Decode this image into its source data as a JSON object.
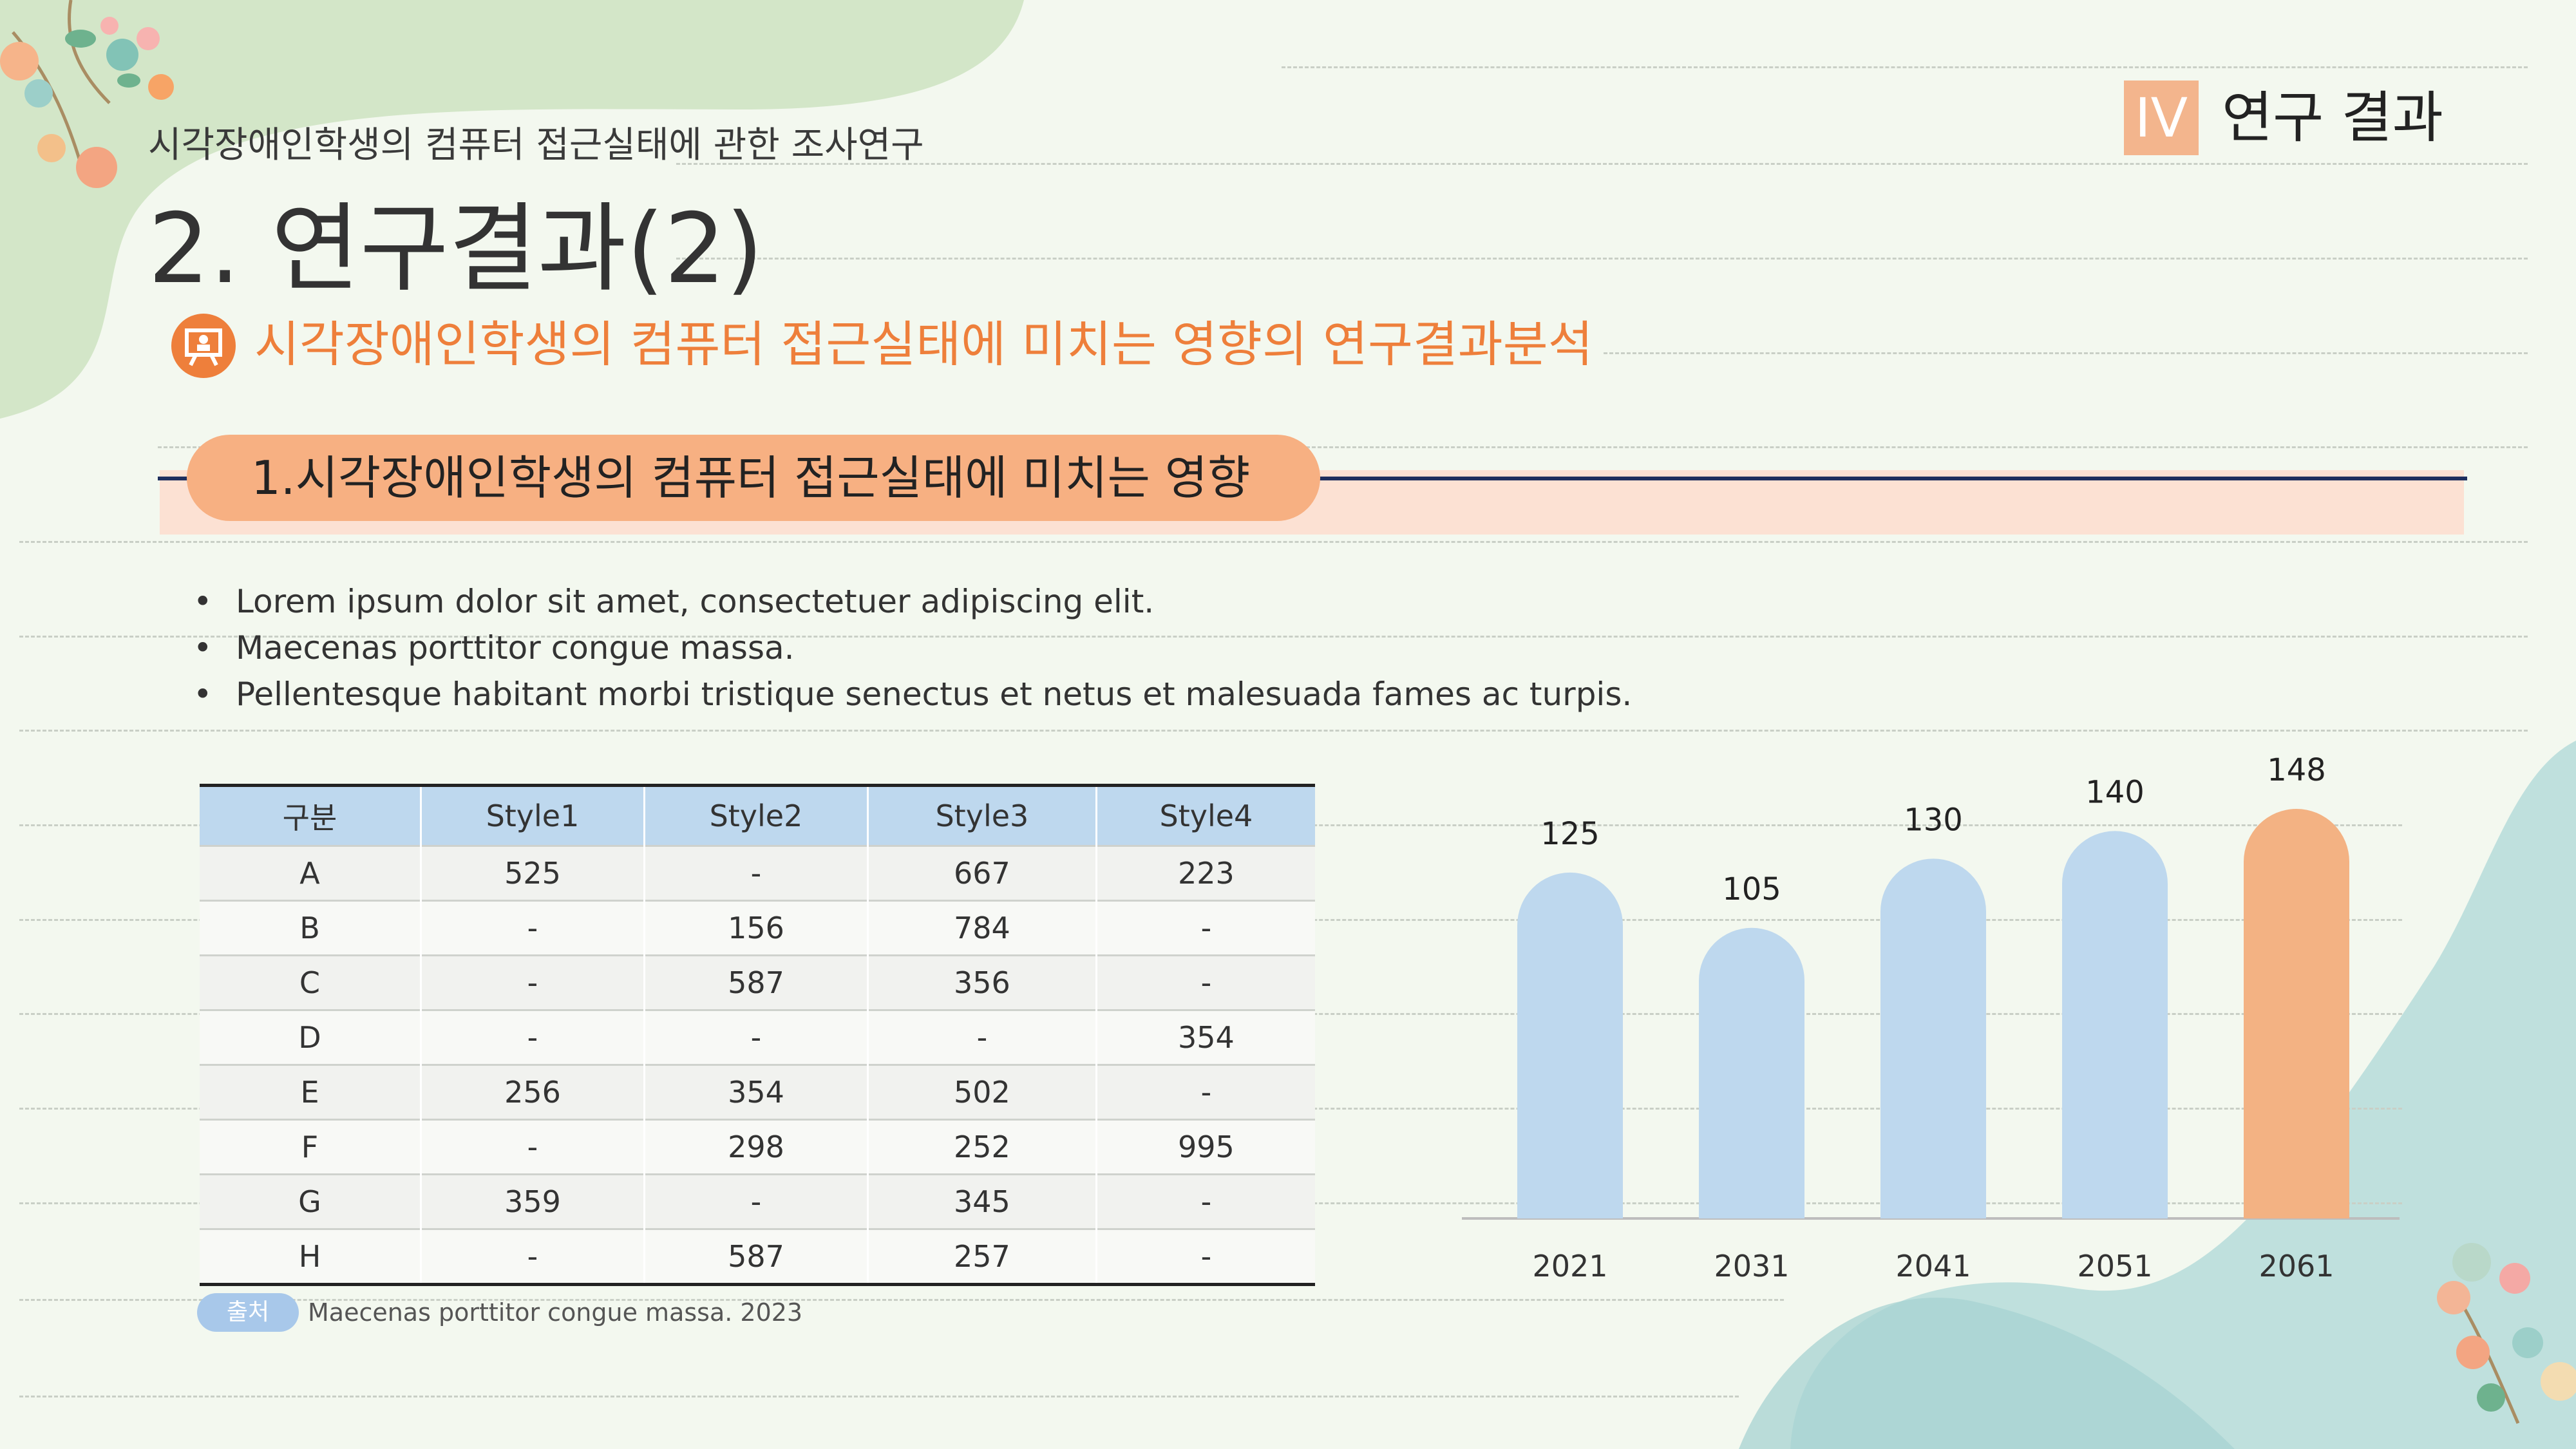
{
  "header": {
    "subtitle": "시각장애인학생의 컴퓨터 접근실태에 관한 조사연구",
    "title": "2. 연구결과(2)",
    "section_numeral": "IV",
    "section_label": "연구 결과"
  },
  "subheading": "시각장애인학생의 컴퓨터 접근실태에 미치는 영향의 연구결과분석",
  "topic_pill": "1.시각장애인학생의 컴퓨터 접근실태에 미치는 영향",
  "bullets": [
    "Lorem ipsum dolor sit amet, consectetuer adipiscing elit.",
    "Maecenas porttitor congue massa.",
    "Pellentesque habitant morbi tristique senectus et netus et malesuada fames ac turpis."
  ],
  "bullet_char": "•",
  "table": {
    "headers": [
      "구분",
      "Style1",
      "Style2",
      "Style3",
      "Style4"
    ],
    "rows": [
      [
        "A",
        "525",
        "-",
        "667",
        "223"
      ],
      [
        "B",
        "-",
        "156",
        "784",
        "-"
      ],
      [
        "C",
        "-",
        "587",
        "356",
        "-"
      ],
      [
        "D",
        "-",
        "-",
        "-",
        "354"
      ],
      [
        "E",
        "256",
        "354",
        "502",
        "-"
      ],
      [
        "F",
        "-",
        "298",
        "252",
        "995"
      ],
      [
        "G",
        "359",
        "-",
        "345",
        "-"
      ],
      [
        "H",
        "-",
        "587",
        "257",
        "-"
      ]
    ]
  },
  "source": {
    "label": "출처",
    "text": "Maecenas porttitor congue massa. 2023"
  },
  "colors": {
    "accent_orange": "#ee7f3b",
    "bar_blue": "#bed8ee",
    "bar_highlight": "#f3b283",
    "navy_line": "#1e2f5e"
  },
  "chart_data": {
    "type": "bar",
    "categories": [
      "2021",
      "2031",
      "2041",
      "2051",
      "2061"
    ],
    "values": [
      125,
      105,
      130,
      140,
      148
    ],
    "highlight_index": 4,
    "title": "",
    "xlabel": "",
    "ylabel": "",
    "ylim": [
      0,
      148
    ],
    "grid": false,
    "legend": "none"
  }
}
